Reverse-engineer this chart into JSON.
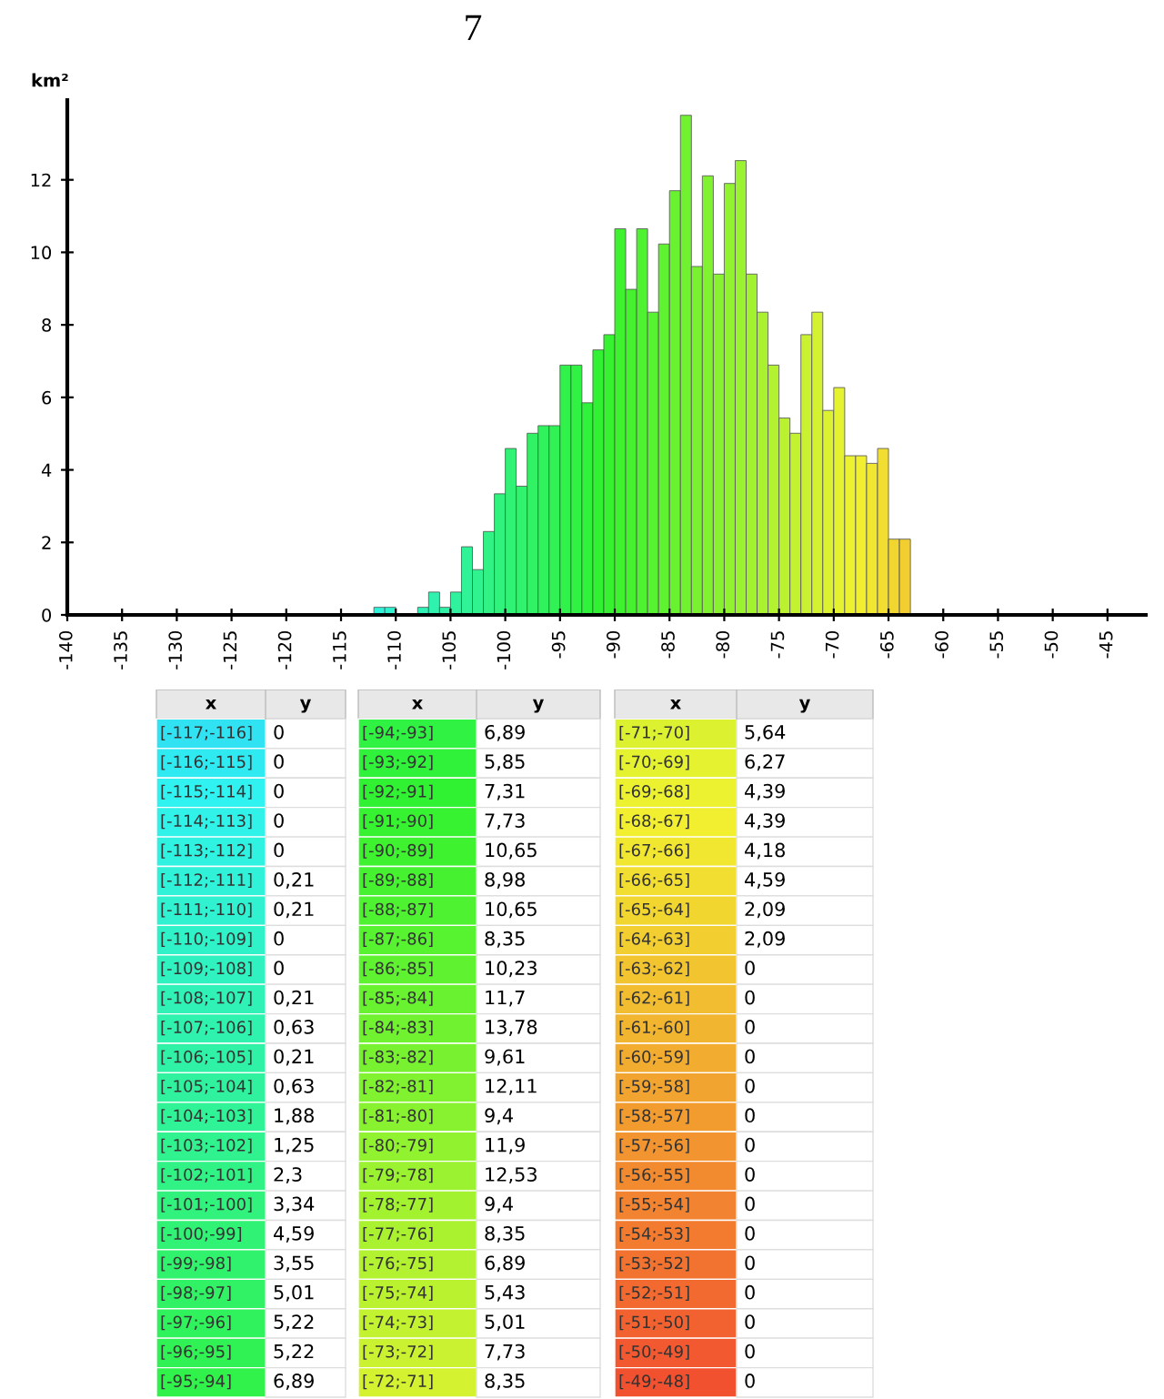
{
  "chart_data": {
    "type": "histogram",
    "title": "7",
    "ylabel": "km²",
    "bins": [
      -117,
      -116,
      -115,
      -114,
      -113,
      -112,
      -111,
      -110,
      -109,
      -108,
      -107,
      -106,
      -105,
      -104,
      -103,
      -102,
      -101,
      -100,
      -99,
      -98,
      -97,
      -96,
      -95,
      -94,
      -93,
      -92,
      -91,
      -90,
      -89,
      -88,
      -87,
      -86,
      -85,
      -84,
      -83,
      -82,
      -81,
      -80,
      -79,
      -78,
      -77,
      -76,
      -75,
      -74,
      -73,
      -72,
      -71,
      -70,
      -69,
      -68,
      -67,
      -66,
      -65,
      -64,
      -63,
      -62,
      -61,
      -60,
      -59,
      -58,
      -57,
      -56,
      -55,
      -54,
      -53,
      -52,
      -51,
      -50,
      -49,
      -48
    ],
    "values": [
      0,
      0,
      0,
      0,
      0,
      0.21,
      0.21,
      0,
      0,
      0.21,
      0.63,
      0.21,
      0.63,
      1.88,
      1.25,
      2.3,
      3.34,
      4.59,
      3.55,
      5.01,
      5.22,
      5.22,
      6.89,
      6.89,
      5.85,
      7.31,
      7.73,
      10.65,
      8.98,
      10.65,
      8.35,
      10.23,
      11.7,
      13.78,
      9.61,
      12.11,
      9.4,
      11.9,
      12.53,
      9.4,
      8.35,
      6.89,
      5.43,
      5.01,
      7.73,
      8.35,
      5.64,
      6.27,
      4.39,
      4.39,
      4.18,
      4.59,
      2.09,
      2.09,
      0,
      0,
      0,
      0,
      0,
      0,
      0,
      0,
      0,
      0,
      0,
      0,
      0,
      0,
      0
    ],
    "colors": [
      "#30e2f2",
      "#30eaf2",
      "#30f2f1",
      "#30f2e9",
      "#30f2e1",
      "#30f2d8",
      "#30f2d0",
      "#30f2c8",
      "#30f2c0",
      "#30f2b7",
      "#30f2af",
      "#30f2a7",
      "#30f29e",
      "#30f296",
      "#30f28e",
      "#30f285",
      "#30f27d",
      "#30f275",
      "#30f26d",
      "#30f264",
      "#30f25c",
      "#30f254",
      "#30f24b",
      "#30f243",
      "#30f23b",
      "#30f232",
      "#36f230",
      "#3ef230",
      "#46f230",
      "#4ff230",
      "#57f230",
      "#5ff230",
      "#68f230",
      "#70f230",
      "#78f230",
      "#81f230",
      "#89f230",
      "#91f230",
      "#9af230",
      "#a2f230",
      "#aaf230",
      "#b2f230",
      "#bbf230",
      "#c3f230",
      "#cbf230",
      "#d4f230",
      "#dcf230",
      "#e4f230",
      "#edf230",
      "#f2ef30",
      "#f2e730",
      "#f2de30",
      "#f2d630",
      "#f2ce30",
      "#f2c530",
      "#f2bd30",
      "#f2b530",
      "#f2ad30",
      "#f2a430",
      "#f29c30",
      "#f29430",
      "#f28b30",
      "#f28330",
      "#f27b30",
      "#f27230",
      "#f26a30",
      "#f26230",
      "#f25930",
      "#f25130"
    ],
    "xlim": [
      -140,
      -41.5
    ],
    "xticks": [
      -140,
      -135,
      -130,
      -125,
      -120,
      -115,
      -110,
      -105,
      -100,
      -95,
      -90,
      -85,
      -80,
      -75,
      -70,
      -65,
      -60,
      -55,
      -50,
      -45
    ],
    "ylim": [
      0,
      14.2
    ],
    "yticks": [
      0,
      2,
      4,
      6,
      8,
      10,
      12
    ],
    "annotations": [
      "x",
      "y",
      "[-117;-116]",
      "[-116;-115]",
      "[-115;-114]",
      "[-114;-113]",
      "[-113;-112]",
      "[-112;-111]",
      "[-111;-110]",
      "[-110;-109]",
      "[-109;-108]",
      "[-108;-107]",
      "[-107;-106]",
      "[-106;-105]",
      "[-105;-104]",
      "[-104;-103]",
      "[-103;-102]",
      "[-102;-101]",
      "[-101;-100]",
      "[-100;-99]",
      "[-99;-98]",
      "[-98;-97]",
      "[-97;-96]",
      "[-96;-95]",
      "[-95;-94]",
      "[-94;-93]",
      "[-93;-92]",
      "[-92;-91]",
      "[-91;-90]",
      "[-90;-89]",
      "[-89;-88]",
      "[-88;-87]",
      "[-87;-86]",
      "[-86;-85]",
      "[-85;-84]",
      "[-84;-83]",
      "[-83;-82]",
      "[-82;-81]",
      "[-81;-80]",
      "[-80;-79]",
      "[-79;-78]",
      "[-78;-77]",
      "[-77;-76]",
      "[-76;-75]",
      "[-75;-74]",
      "[-74;-73]",
      "[-73;-72]",
      "[-72;-71]",
      "[-71;-70]",
      "[-70;-69]",
      "[-69;-68]",
      "[-68;-67]",
      "[-67;-66]",
      "[-66;-65]",
      "[-65;-64]",
      "[-64;-63]",
      "[-63;-62]",
      "[-62;-61]",
      "[-61;-60]",
      "[-60;-59]",
      "[-59;-58]",
      "[-58;-57]",
      "[-57;-56]",
      "[-56;-55]",
      "[-55;-54]",
      "[-54;-53]",
      "[-53;-52]",
      "[-52;-51]",
      "[-51;-50]",
      "[-50;-49]",
      "[-49;-48]",
      "0",
      "0",
      "0",
      "0",
      "0",
      "0,21",
      "0,21",
      "0",
      "0",
      "0,21",
      "0,63",
      "0,21",
      "0,63",
      "1,88",
      "1,25",
      "2,3",
      "3,34",
      "4,59",
      "3,55",
      "5,01",
      "5,22",
      "5,22",
      "6,89",
      "6,89",
      "5,85",
      "7,31",
      "7,73",
      "10,65",
      "8,98",
      "10,65",
      "8,35",
      "10,23",
      "11,7",
      "13,78",
      "9,61",
      "12,11",
      "9,4",
      "11,9",
      "12,53",
      "9,4",
      "8,35",
      "6,89",
      "5,43",
      "5,01",
      "7,73",
      "8,35",
      "5,64",
      "6,27",
      "4,39",
      "4,39",
      "4,18",
      "4,59",
      "2,09",
      "2,09",
      "0",
      "0",
      "0",
      "0",
      "0",
      "0",
      "0",
      "0",
      "0",
      "0",
      "0",
      "0",
      "0",
      "0",
      "0"
    ],
    "grid": false,
    "legend": false
  }
}
